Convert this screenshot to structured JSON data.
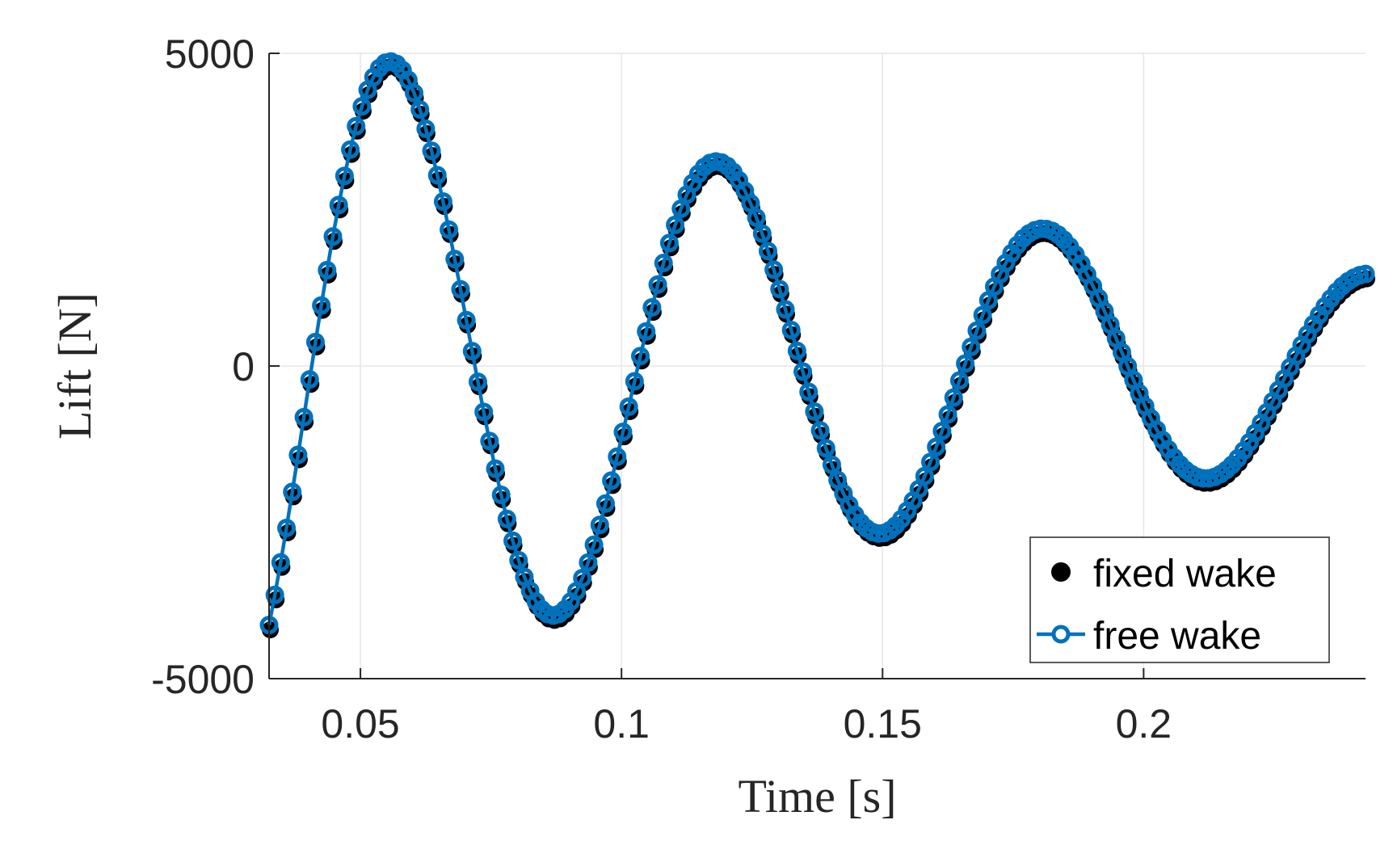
{
  "chart_data": {
    "type": "line",
    "title": "",
    "xlabel": "Time [s]",
    "ylabel": "Lift [N]",
    "xlim": [
      0.0325,
      0.2425
    ],
    "ylim": [
      -5000,
      5000
    ],
    "xticks": [
      0.05,
      0.1,
      0.15,
      0.2
    ],
    "xtick_labels": [
      "0.05",
      "0.1",
      "0.15",
      "0.2"
    ],
    "yticks": [
      -5000,
      0,
      5000
    ],
    "ytick_labels": [
      "-5000",
      "0",
      "5000"
    ],
    "grid": true,
    "legend_position": "bottom-right",
    "colors": {
      "fixed_wake": "#000000",
      "free_wake": "#0072BD",
      "axis": "#262626",
      "grid": "#e6e6e6"
    },
    "signal": {
      "t_start": 0.0325,
      "t_end": 0.2425,
      "n_samples": 190,
      "period": 0.0625,
      "amplitude_at_peak1": 4860,
      "peak1_time": 0.0563,
      "decay_rate": 6.37
    },
    "x": [
      0.0325,
      0.0563,
      0.0875,
      0.1188,
      0.15,
      0.1813,
      0.2125,
      0.2425
    ],
    "series": [
      {
        "name": "fixed wake",
        "marker": "filled-circle",
        "line": "none",
        "values": [
          -4580,
          4860,
          -4150,
          3610,
          -3030,
          2570,
          -2210,
          1700
        ]
      },
      {
        "name": "free wake",
        "marker": "open-circle",
        "line": "solid",
        "values": [
          -4460,
          4860,
          -4150,
          3610,
          -3030,
          2570,
          -2210,
          1700
        ]
      }
    ]
  }
}
